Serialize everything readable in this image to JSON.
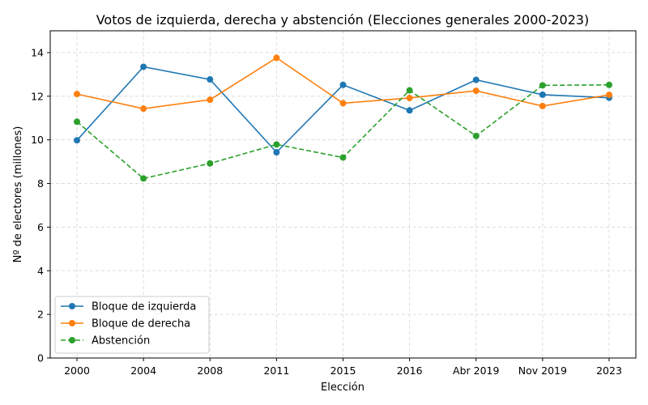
{
  "chart_data": {
    "type": "line",
    "title": "Votos de izquierda, derecha y abstención (Elecciones generales 2000-2023)",
    "xlabel": "Elección",
    "ylabel": "Nº de electores (millones)",
    "categories": [
      "2000",
      "2004",
      "2008",
      "2011",
      "2015",
      "2016",
      "Abr 2019",
      "Nov 2019",
      "2023"
    ],
    "ylim": [
      0,
      15
    ],
    "yticks": [
      0,
      2,
      4,
      6,
      8,
      10,
      12,
      14
    ],
    "grid": true,
    "legend_position": "lower-left",
    "series": [
      {
        "name": "Bloque de izquierda",
        "color": "#1f77b4",
        "linestyle": "solid",
        "values": [
          9.98,
          13.35,
          12.77,
          9.43,
          12.52,
          11.35,
          12.75,
          12.07,
          11.93
        ]
      },
      {
        "name": "Bloque de derecha",
        "color": "#ff7f0e",
        "linestyle": "solid",
        "values": [
          12.1,
          11.43,
          11.84,
          13.76,
          11.68,
          11.92,
          12.25,
          11.55,
          12.06
        ]
      },
      {
        "name": "Abstención",
        "color": "#2ca02c",
        "linestyle": "dashed",
        "values": [
          10.83,
          8.23,
          8.92,
          9.79,
          9.19,
          12.27,
          10.18,
          12.5,
          12.52
        ]
      }
    ]
  }
}
